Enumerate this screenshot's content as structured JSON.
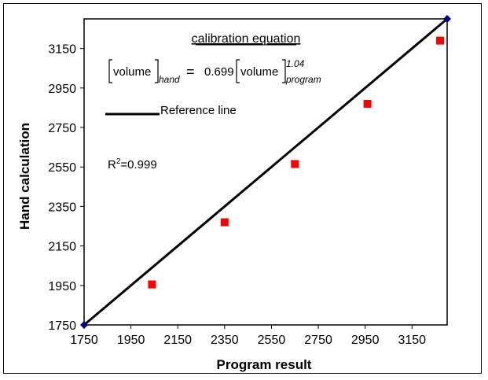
{
  "chart_data": {
    "type": "scatter",
    "xlabel": "Program result",
    "ylabel": "Hand calculation",
    "xlim": [
      1750,
      3300
    ],
    "ylim": [
      1750,
      3300
    ],
    "xticks": [
      1750,
      1950,
      2150,
      2350,
      2550,
      2750,
      2950,
      3150
    ],
    "yticks": [
      1750,
      1950,
      2150,
      2350,
      2550,
      2750,
      2950,
      3150
    ],
    "xtick_labels": [
      "1750",
      "1950",
      "2150",
      "2350",
      "2550",
      "2750",
      "2950",
      "3150"
    ],
    "ytick_labels": [
      "1750",
      "1950",
      "2150",
      "2350",
      "2550",
      "2750",
      "2950",
      "3150"
    ],
    "grid": false,
    "series": [
      {
        "marker": "square",
        "color": "#ff0000",
        "x": [
          2040,
          2350,
          2650,
          2960,
          3270
        ],
        "y": [
          1955,
          2270,
          2565,
          2870,
          3190
        ]
      },
      {
        "name": "Reference line",
        "type": "line",
        "color": "#000000",
        "end_marker_color": "#000080",
        "x": [
          1750,
          3300
        ],
        "y": [
          1750,
          3300
        ]
      }
    ],
    "annotations": {
      "equation_title": "calibration equation",
      "lhs_word": "volume",
      "lhs_sub": "hand",
      "equals": "=",
      "coef": "0.699",
      "rhs_word": "volume",
      "rhs_sub": "program",
      "rhs_exp": "1.04",
      "r2_prefix": "R",
      "r2_sup": "2",
      "r2_value": "=0.999",
      "legend_label": "Reference line"
    }
  }
}
